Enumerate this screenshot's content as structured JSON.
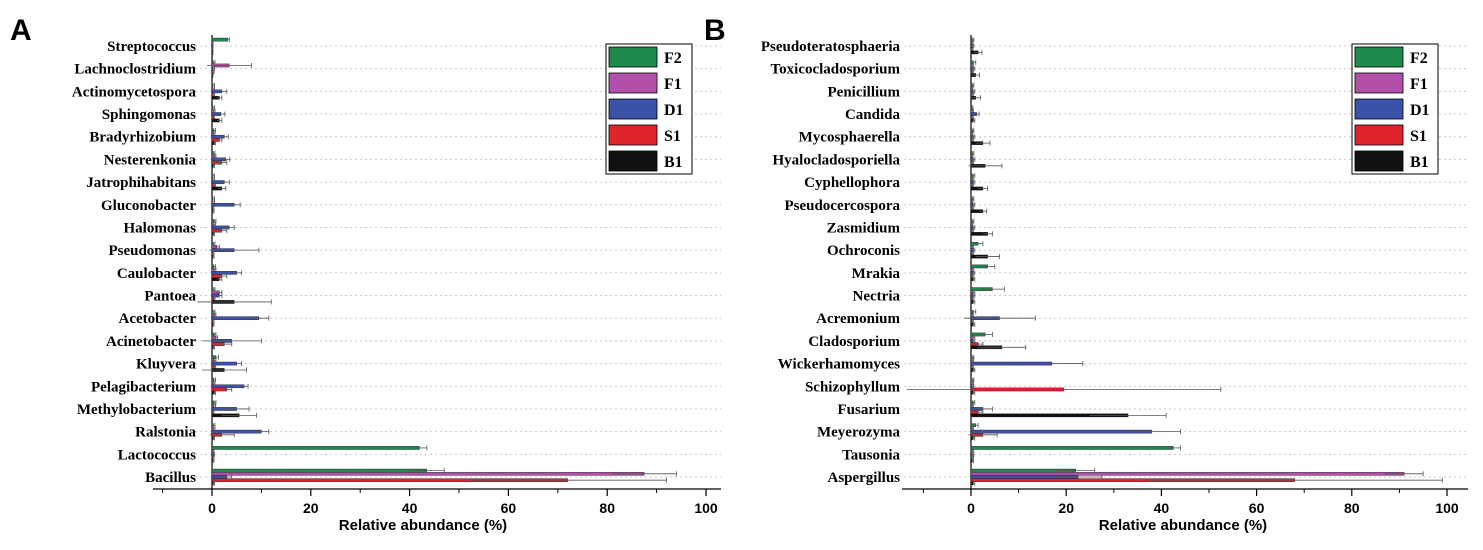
{
  "chart_data": [
    {
      "type": "bar",
      "orientation": "horizontal",
      "panel_label": "A",
      "xlabel": "Relative abundance (%)",
      "ylabel": "",
      "xlim": [
        -12,
        102
      ],
      "xticks": [
        0,
        20,
        40,
        60,
        80,
        100
      ],
      "xtick_labels": [
        "0",
        "20",
        "40",
        "60",
        "80",
        "100"
      ],
      "grid": "horizontal dotted",
      "legend_position": "top-right",
      "series_names": [
        "F2",
        "F1",
        "D1",
        "S1",
        "B1"
      ],
      "colors": [
        "#1e8a4c",
        "#b24fa8",
        "#3a52a8",
        "#e0242c",
        "#111111"
      ],
      "categories": [
        "Streptococcus",
        "Lachnoclostridium",
        "Actinomycetospora",
        "Sphingomonas",
        "Bradyrhizobium",
        "Nesterenkonia",
        "Jatrophihabitans",
        "Gluconobacter",
        "Halomonas",
        "Pseudomonas",
        "Caulobacter",
        "Pantoea",
        "Acetobacter",
        "Acinetobacter",
        "Kluyvera",
        "Pelagibacterium",
        "Methylobacterium",
        "Ralstonia",
        "Lactococcus",
        "Bacillus"
      ],
      "series": [
        {
          "name": "F2",
          "values": [
            3.2,
            0.3,
            0.2,
            0.2,
            0.4,
            0.3,
            0.2,
            0.2,
            0.5,
            0.3,
            0.4,
            0.3,
            0.3,
            0.5,
            0.8,
            0.4,
            0.5,
            0.3,
            42.0,
            43.5
          ],
          "errors": [
            0.3,
            0.3,
            0.3,
            0.3,
            0.3,
            0.3,
            0.3,
            0.3,
            0.3,
            0.3,
            0.3,
            0.3,
            0.3,
            0.3,
            0.5,
            0.3,
            0.3,
            0.3,
            1.5,
            3.5
          ]
        },
        {
          "name": "F1",
          "values": [
            0.1,
            3.5,
            0.2,
            0.3,
            0.3,
            0.5,
            0.2,
            0.2,
            0.4,
            1.0,
            0.5,
            1.5,
            0.5,
            0.8,
            0.5,
            0.3,
            0.4,
            0.3,
            0.2,
            87.5
          ],
          "errors": [
            0.1,
            4.5,
            0.3,
            0.3,
            0.3,
            0.3,
            0.3,
            0.3,
            0.3,
            0.5,
            0.3,
            0.5,
            0.3,
            0.3,
            0.3,
            0.3,
            0.3,
            0.3,
            0.2,
            6.5
          ]
        },
        {
          "name": "D1",
          "values": [
            0.1,
            0.2,
            2.0,
            1.8,
            2.5,
            2.8,
            2.5,
            4.5,
            3.5,
            4.5,
            5.0,
            1.5,
            9.5,
            4.0,
            5.0,
            6.5,
            5.0,
            10.0,
            0.3,
            3.0
          ],
          "errors": [
            0.1,
            0.3,
            1.0,
            0.8,
            0.8,
            0.8,
            1.0,
            1.2,
            1.0,
            5.0,
            1.0,
            0.5,
            2.0,
            6.0,
            1.0,
            0.8,
            2.5,
            1.5,
            0.2,
            1.0
          ]
        },
        {
          "name": "S1",
          "values": [
            0.1,
            0.2,
            0.3,
            0.3,
            1.5,
            2.0,
            0.5,
            0.2,
            2.0,
            0.2,
            2.0,
            0.4,
            0.2,
            2.5,
            0.5,
            3.0,
            0.2,
            2.0,
            0.2,
            72.0
          ],
          "errors": [
            0.1,
            0.2,
            0.2,
            0.2,
            0.5,
            1.0,
            0.2,
            0.2,
            1.0,
            0.2,
            1.0,
            0.2,
            0.2,
            1.5,
            0.2,
            1.0,
            0.2,
            2.5,
            0.2,
            20.0
          ]
        },
        {
          "name": "B1",
          "values": [
            0.1,
            0.1,
            1.5,
            1.5,
            0.5,
            0.3,
            2.0,
            0.2,
            0.3,
            0.2,
            1.5,
            4.5,
            0.2,
            0.3,
            2.5,
            0.5,
            5.5,
            0.3,
            0.2,
            0.3
          ],
          "errors": [
            0.1,
            0.1,
            0.5,
            0.5,
            0.2,
            0.2,
            0.8,
            0.2,
            0.2,
            0.2,
            0.5,
            7.5,
            0.2,
            0.2,
            4.5,
            0.2,
            3.5,
            0.2,
            0.2,
            0.2
          ]
        }
      ]
    },
    {
      "type": "bar",
      "orientation": "horizontal",
      "panel_label": "B",
      "xlabel": "Relative abundance (%)",
      "ylabel": "",
      "xlim": [
        -14,
        102
      ],
      "xticks": [
        0,
        20,
        40,
        60,
        80,
        100
      ],
      "xtick_labels": [
        "0",
        "20",
        "40",
        "60",
        "80",
        "100"
      ],
      "grid": "horizontal dotted",
      "legend_position": "top-right",
      "series_names": [
        "F2",
        "F1",
        "D1",
        "S1",
        "B1"
      ],
      "colors": [
        "#1e8a4c",
        "#b24fa8",
        "#3a52a8",
        "#e0242c",
        "#111111"
      ],
      "categories": [
        "Pseudoteratosphaeria",
        "Toxicocladosporium",
        "Penicillium",
        "Candida",
        "Mycosphaerella",
        "Hyalocladosporiella",
        "Cyphellophora",
        "Pseudocercospora",
        "Zasmidium",
        "Ochroconis",
        "Mrakia",
        "Nectria",
        "Acremonium",
        "Cladosporium",
        "Wickerhamomyces",
        "Schizophyllum",
        "Fusarium",
        "Meyerozyma",
        "Tausonia",
        "Aspergillus"
      ],
      "series": [
        {
          "name": "F2",
          "values": [
            0.3,
            0.5,
            0.3,
            0.2,
            0.3,
            0.3,
            0.5,
            0.3,
            0.3,
            1.5,
            3.5,
            4.5,
            0.5,
            3.0,
            0.3,
            0.3,
            0.5,
            1.0,
            42.5,
            22.0
          ],
          "errors": [
            0.3,
            0.5,
            0.3,
            0.2,
            0.3,
            0.3,
            0.3,
            0.3,
            0.3,
            1.0,
            1.5,
            2.5,
            0.5,
            1.5,
            0.3,
            0.3,
            0.3,
            0.5,
            1.5,
            4.0
          ]
        },
        {
          "name": "F1",
          "values": [
            0.2,
            0.3,
            0.2,
            0.3,
            0.2,
            0.2,
            0.3,
            0.2,
            0.2,
            0.3,
            0.3,
            0.5,
            0.3,
            0.5,
            0.3,
            0.3,
            0.3,
            0.3,
            0.3,
            91.0
          ],
          "errors": [
            0.2,
            0.2,
            0.2,
            0.2,
            0.2,
            0.2,
            0.2,
            0.2,
            0.2,
            0.2,
            0.2,
            0.3,
            0.2,
            0.3,
            0.2,
            0.2,
            0.2,
            0.2,
            0.2,
            4.0
          ]
        },
        {
          "name": "D1",
          "values": [
            0.3,
            0.5,
            0.5,
            1.2,
            0.5,
            0.5,
            0.5,
            0.5,
            0.5,
            0.5,
            0.5,
            0.5,
            6.0,
            0.5,
            17.0,
            0.3,
            2.5,
            38.0,
            0.3,
            22.5
          ],
          "errors": [
            0.3,
            0.3,
            0.3,
            0.5,
            0.3,
            0.3,
            0.3,
            0.3,
            0.3,
            0.3,
            0.3,
            0.3,
            7.5,
            0.3,
            6.5,
            0.3,
            2.0,
            6.0,
            0.3,
            5.0
          ]
        },
        {
          "name": "S1",
          "values": [
            0.2,
            0.3,
            0.3,
            0.3,
            0.3,
            0.3,
            0.3,
            0.3,
            0.3,
            0.3,
            0.3,
            0.3,
            0.3,
            1.5,
            0.3,
            19.5,
            1.5,
            2.5,
            0.3,
            68.0
          ],
          "errors": [
            0.2,
            0.2,
            0.2,
            0.2,
            0.2,
            0.2,
            0.2,
            0.2,
            0.2,
            0.2,
            0.2,
            0.2,
            0.2,
            1.0,
            0.2,
            33.0,
            1.0,
            3.0,
            0.2,
            31.0
          ]
        },
        {
          "name": "B1",
          "values": [
            1.5,
            1.0,
            1.0,
            0.5,
            2.5,
            3.0,
            2.5,
            2.5,
            3.5,
            3.5,
            0.5,
            0.5,
            0.5,
            6.5,
            0.5,
            0.5,
            33.0,
            0.5,
            0.3,
            0.5
          ],
          "errors": [
            0.8,
            0.8,
            1.0,
            0.3,
            1.5,
            3.5,
            1.0,
            0.8,
            1.0,
            2.5,
            0.3,
            0.3,
            0.3,
            5.0,
            0.3,
            0.3,
            8.0,
            0.3,
            0.2,
            0.3
          ]
        }
      ]
    }
  ]
}
